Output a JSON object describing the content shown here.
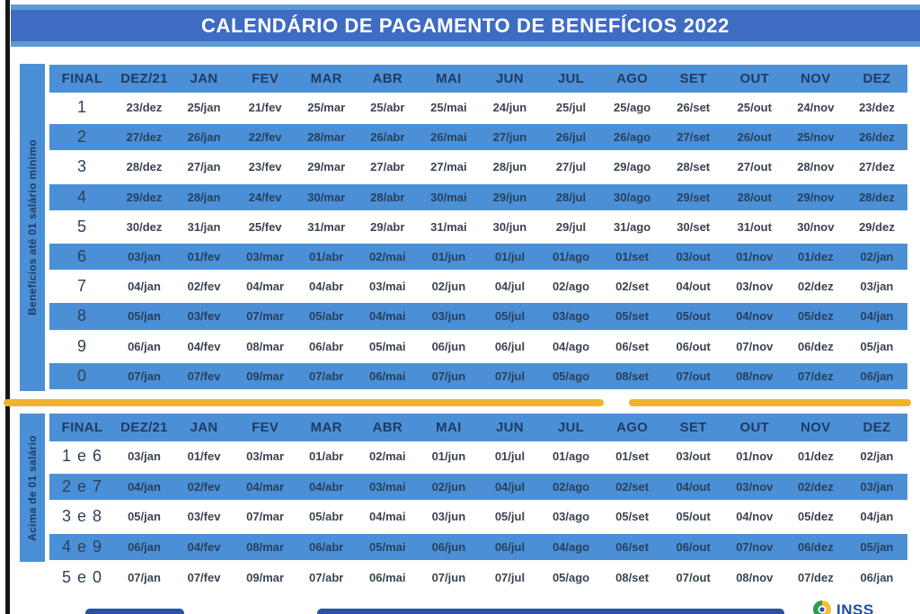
{
  "title": "CALENDÁRIO DE PAGAMENTO DE BENEFÍCIOS 2022",
  "colors": {
    "table_blue": "#4b90d7",
    "title_bar_blue": "#3e6cc2",
    "title_edge_blue": "#5b9bd5",
    "header_text_navy": "#203b63",
    "separator_yellow": "#eeb32f",
    "footer_bar_blue": "#2c50a5",
    "inss_text_blue": "#1d4f9f"
  },
  "columns": [
    "FINAL",
    "DEZ/21",
    "JAN",
    "FEV",
    "MAR",
    "ABR",
    "MAI",
    "JUN",
    "JUL",
    "AGO",
    "SET",
    "OUT",
    "NOV",
    "DEZ"
  ],
  "table1": {
    "label": "Benefícios até 01 salário mínimo",
    "rows": [
      {
        "final": "1",
        "dates": [
          "23/dez",
          "25/jan",
          "21/fev",
          "25/mar",
          "25/abr",
          "25/mai",
          "24/jun",
          "25/jul",
          "25/ago",
          "26/set",
          "25/out",
          "24/nov",
          "23/dez"
        ]
      },
      {
        "final": "2",
        "dates": [
          "27/dez",
          "26/jan",
          "22/fev",
          "28/mar",
          "26/abr",
          "26/mai",
          "27/jun",
          "26/jul",
          "26/ago",
          "27/set",
          "26/out",
          "25/nov",
          "26/dez"
        ]
      },
      {
        "final": "3",
        "dates": [
          "28/dez",
          "27/jan",
          "23/fev",
          "29/mar",
          "27/abr",
          "27/mai",
          "28/jun",
          "27/jul",
          "29/ago",
          "28/set",
          "27/out",
          "28/nov",
          "27/dez"
        ]
      },
      {
        "final": "4",
        "dates": [
          "29/dez",
          "28/jan",
          "24/fev",
          "30/mar",
          "28/abr",
          "30/mai",
          "29/jun",
          "28/jul",
          "30/ago",
          "29/set",
          "28/out",
          "29/nov",
          "28/dez"
        ]
      },
      {
        "final": "5",
        "dates": [
          "30/dez",
          "31/jan",
          "25/fev",
          "31/mar",
          "29/abr",
          "31/mai",
          "30/jun",
          "29/jul",
          "31/ago",
          "30/set",
          "31/out",
          "30/nov",
          "29/dez"
        ]
      },
      {
        "final": "6",
        "dates": [
          "03/jan",
          "01/fev",
          "03/mar",
          "01/abr",
          "02/mai",
          "01/jun",
          "01/jul",
          "01/ago",
          "01/set",
          "03/out",
          "01/nov",
          "01/dez",
          "02/jan"
        ]
      },
      {
        "final": "7",
        "dates": [
          "04/jan",
          "02/fev",
          "04/mar",
          "04/abr",
          "03/mai",
          "02/jun",
          "04/jul",
          "02/ago",
          "02/set",
          "04/out",
          "03/nov",
          "02/dez",
          "03/jan"
        ]
      },
      {
        "final": "8",
        "dates": [
          "05/jan",
          "03/fev",
          "07/mar",
          "05/abr",
          "04/mai",
          "03/jun",
          "05/jul",
          "03/ago",
          "05/set",
          "05/out",
          "04/nov",
          "05/dez",
          "04/jan"
        ]
      },
      {
        "final": "9",
        "dates": [
          "06/jan",
          "04/fev",
          "08/mar",
          "06/abr",
          "05/mai",
          "06/jun",
          "06/jul",
          "04/ago",
          "06/set",
          "06/out",
          "07/nov",
          "06/dez",
          "05/jan"
        ]
      },
      {
        "final": "0",
        "dates": [
          "07/jan",
          "07/fev",
          "09/mar",
          "07/abr",
          "06/mai",
          "07/jun",
          "07/jul",
          "05/ago",
          "08/set",
          "07/out",
          "08/nov",
          "07/dez",
          "06/jan"
        ]
      }
    ]
  },
  "table2": {
    "label": "Acima de 01 salário",
    "rows": [
      {
        "final": "1 e 6",
        "dates": [
          "03/jan",
          "01/fev",
          "03/mar",
          "01/abr",
          "02/mai",
          "01/jun",
          "01/jul",
          "01/ago",
          "01/set",
          "03/out",
          "01/nov",
          "01/dez",
          "02/jan"
        ]
      },
      {
        "final": "2 e 7",
        "dates": [
          "04/jan",
          "02/fev",
          "04/mar",
          "04/abr",
          "03/mai",
          "02/jun",
          "04/jul",
          "02/ago",
          "02/set",
          "04/out",
          "03/nov",
          "02/dez",
          "03/jan"
        ]
      },
      {
        "final": "3 e 8",
        "dates": [
          "05/jan",
          "03/fev",
          "07/mar",
          "05/abr",
          "04/mai",
          "03/jun",
          "05/jul",
          "03/ago",
          "05/set",
          "05/out",
          "04/nov",
          "05/dez",
          "04/jan"
        ]
      },
      {
        "final": "4 e 9",
        "dates": [
          "06/jan",
          "04/fev",
          "08/mar",
          "06/abr",
          "05/mai",
          "06/jun",
          "06/jul",
          "04/ago",
          "06/set",
          "06/out",
          "07/nov",
          "06/dez",
          "05/jan"
        ]
      },
      {
        "final": "5 e 0",
        "dates": [
          "07/jan",
          "07/fev",
          "09/mar",
          "07/abr",
          "06/mai",
          "07/jun",
          "07/jul",
          "05/ago",
          "08/set",
          "07/out",
          "08/nov",
          "07/dez",
          "06/jan"
        ]
      }
    ]
  },
  "footer": {
    "logo_text": "INSS"
  }
}
